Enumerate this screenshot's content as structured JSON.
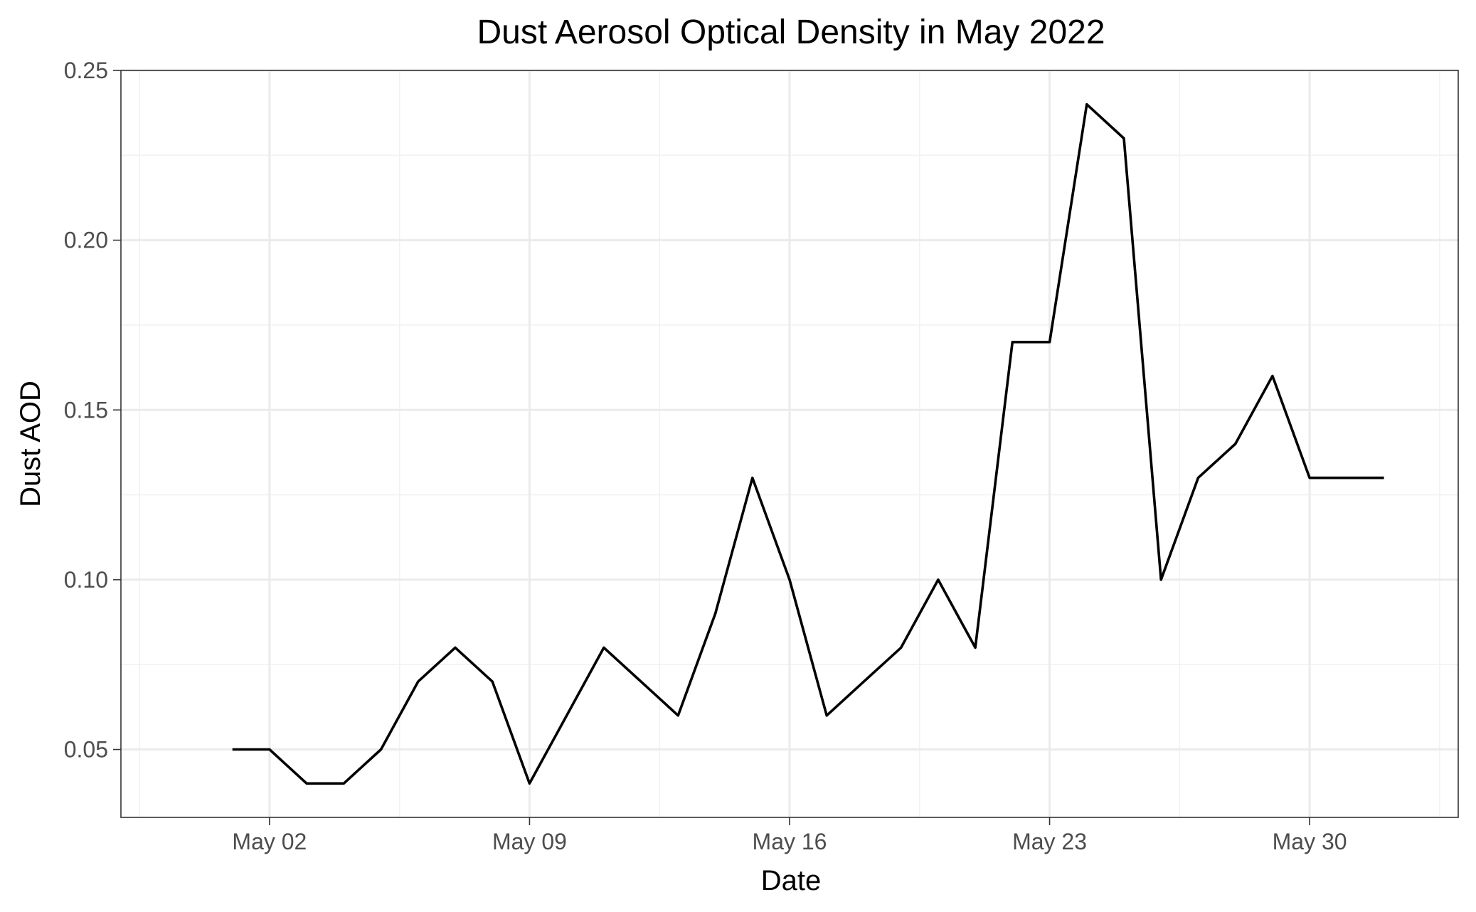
{
  "chart_data": {
    "type": "line",
    "title": "Dust Aerosol Optical Density in May 2022",
    "xlabel": "Date",
    "ylabel": "Dust AOD",
    "x_ticks": [
      {
        "date": "2022-05-02",
        "label": "May 02"
      },
      {
        "date": "2022-05-09",
        "label": "May 09"
      },
      {
        "date": "2022-05-16",
        "label": "May 16"
      },
      {
        "date": "2022-05-23",
        "label": "May 23"
      },
      {
        "date": "2022-05-30",
        "label": "May 30"
      }
    ],
    "y_ticks": [
      {
        "value": 0.05,
        "label": "0.05"
      },
      {
        "value": 0.1,
        "label": "0.10"
      },
      {
        "value": 0.15,
        "label": "0.15"
      },
      {
        "value": 0.2,
        "label": "0.20"
      },
      {
        "value": 0.25,
        "label": "0.25"
      }
    ],
    "ylim": [
      0.03,
      0.25
    ],
    "xlim": [
      "2022-04-28",
      "2022-06-03"
    ],
    "grid": true,
    "legend": "none",
    "line_color": "#000000",
    "x": [
      "2022-05-01",
      "2022-05-02",
      "2022-05-03",
      "2022-05-04",
      "2022-05-05",
      "2022-05-06",
      "2022-05-07",
      "2022-05-08",
      "2022-05-09",
      "2022-05-10",
      "2022-05-11",
      "2022-05-12",
      "2022-05-13",
      "2022-05-14",
      "2022-05-15",
      "2022-05-16",
      "2022-05-17",
      "2022-05-18",
      "2022-05-19",
      "2022-05-20",
      "2022-05-21",
      "2022-05-22",
      "2022-05-23",
      "2022-05-24",
      "2022-05-25",
      "2022-05-26",
      "2022-05-27",
      "2022-05-28",
      "2022-05-29",
      "2022-05-30",
      "2022-05-31",
      "2022-06-01"
    ],
    "values": [
      0.05,
      0.05,
      0.04,
      0.04,
      0.05,
      0.07,
      0.08,
      0.07,
      0.04,
      0.06,
      0.08,
      0.07,
      0.06,
      0.09,
      0.13,
      0.1,
      0.06,
      0.07,
      0.08,
      0.1,
      0.08,
      0.17,
      0.17,
      0.24,
      0.23,
      0.1,
      0.13,
      0.14,
      0.16,
      0.13,
      0.13,
      0.13
    ]
  }
}
